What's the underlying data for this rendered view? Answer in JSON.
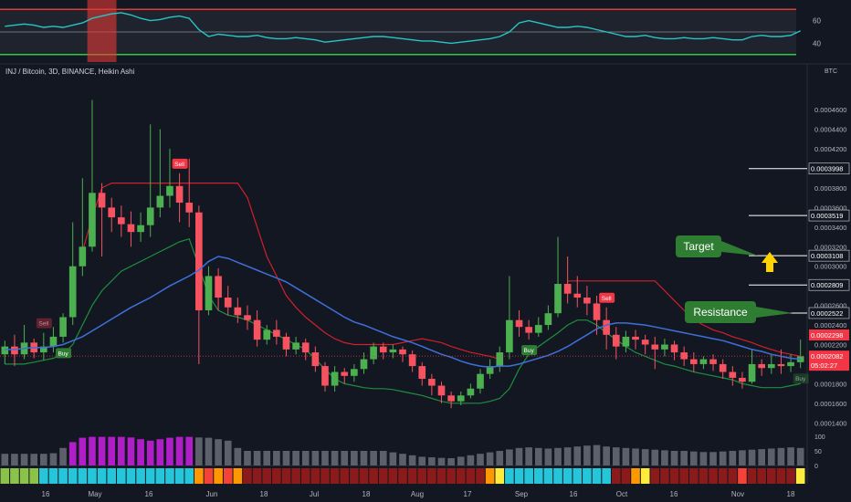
{
  "symbol": {
    "legend": "INJ / Bitcoin, 3D, BINANCE, Heikin Ashi"
  },
  "scale_unit": "BTC",
  "osc": {
    "ticks": [
      {
        "v": 60,
        "label": "60"
      },
      {
        "v": 40,
        "label": "40"
      }
    ],
    "ylim": [
      25,
      75
    ],
    "overbought": 70,
    "oversold": 30,
    "mid": 50
  },
  "volume": {
    "ticks": [
      {
        "v": 100,
        "label": "100"
      },
      {
        "v": 50,
        "label": "50"
      },
      {
        "v": 0,
        "label": "0"
      }
    ],
    "ylim": [
      0,
      100
    ]
  },
  "price_axis": {
    "ticks": [
      "0.0004600",
      "0.0004400",
      "0.0004200",
      "0.0004000",
      "0.0003800",
      "0.0003600",
      "0.0003400",
      "0.0003200",
      "0.0003000",
      "0.0002800",
      "0.0002600",
      "0.0002400",
      "0.0002200",
      "0.0002000",
      "0.0001800",
      "0.0001600",
      "0.0001400"
    ],
    "ylim": [
      0.00013,
      0.00049
    ]
  },
  "levels": [
    {
      "label": "0.0003998",
      "value": 0.0003998
    },
    {
      "label": "0.0003519",
      "value": 0.0003519
    },
    {
      "label": "0.0003108",
      "value": 0.0003108
    },
    {
      "label": "0.0002809",
      "value": 0.0002809
    },
    {
      "label": "0.0002522",
      "value": 0.0002522
    }
  ],
  "price_tags": [
    {
      "label": "0.0002298",
      "value": 0.0002298,
      "color": "#f23645"
    },
    {
      "label": "0.0002082",
      "value": 0.0002082,
      "color": "#f23645",
      "countdown": "05:02:27"
    }
  ],
  "annotations": [
    {
      "text": "Target",
      "anchor_value": 0.0003108
    },
    {
      "text": "Resistance",
      "anchor_value": 0.0002522
    }
  ],
  "x_ticks": [
    "16",
    "May",
    "16",
    "Jun",
    "18",
    "Jul",
    "18",
    "Aug",
    "17",
    "Sep",
    "16",
    "Oct",
    "16",
    "Nov",
    "18"
  ],
  "signals": [
    {
      "type": "Sell",
      "label": "Sell"
    },
    {
      "type": "Buy",
      "label": "Buy"
    },
    {
      "type": "Sell",
      "label": "Sell"
    },
    {
      "type": "Buy",
      "label": "Buy"
    },
    {
      "type": "Sell",
      "label": "Sell"
    },
    {
      "type": "Buy",
      "label": "Buy"
    }
  ],
  "colors": {
    "up": "#4caf50",
    "down": "#f7525f",
    "ma": "#3f6fd9",
    "trail_down": "#d0202a",
    "trail_up": "#1e8e3e",
    "osc": "#26c6c6",
    "bg": "#131722"
  },
  "chart_data": {
    "type": "candlestick",
    "title": "INJ / Bitcoin, 3D, BINANCE, Heikin Ashi",
    "y_unit": "BTC",
    "ylim": [
      0.00013,
      0.00049
    ],
    "candles": [
      [
        0.00021,
        0.000218,
        0.0002,
        0.000224
      ],
      [
        0.000218,
        0.00021,
        0.000198,
        0.00023
      ],
      [
        0.00021,
        0.000222,
        0.000205,
        0.00024
      ],
      [
        0.000222,
        0.000212,
        0.000206,
        0.000226
      ],
      [
        0.000212,
        0.000218,
        0.000204,
        0.000232
      ],
      [
        0.000218,
        0.000228,
        0.000212,
        0.000238
      ],
      [
        0.000228,
        0.000248,
        0.000222,
        0.000252
      ],
      [
        0.000248,
        0.0003,
        0.00024,
        0.000345
      ],
      [
        0.0003,
        0.00032,
        0.00029,
        0.00039
      ],
      [
        0.00032,
        0.000375,
        0.000315,
        0.00047
      ],
      [
        0.000375,
        0.00036,
        0.00031,
        0.000385
      ],
      [
        0.00036,
        0.00035,
        0.000335,
        0.00037
      ],
      [
        0.00035,
        0.000343,
        0.00033,
        0.000362
      ],
      [
        0.000343,
        0.000335,
        0.00032,
        0.000356
      ],
      [
        0.000335,
        0.000342,
        0.000325,
        0.000355
      ],
      [
        0.000342,
        0.00036,
        0.00033,
        0.000445
      ],
      [
        0.00036,
        0.000372,
        0.00035,
        0.00044
      ],
      [
        0.000372,
        0.000382,
        0.00036,
        0.00042
      ],
      [
        0.000382,
        0.000365,
        0.000345,
        0.000395
      ],
      [
        0.000365,
        0.000355,
        0.00034,
        0.00041
      ],
      [
        0.000355,
        0.000255,
        0.0002,
        0.000362
      ],
      [
        0.000255,
        0.00029,
        0.00025,
        0.0003
      ],
      [
        0.00029,
        0.000268,
        0.000255,
        0.000298
      ],
      [
        0.000268,
        0.000258,
        0.00025,
        0.00028
      ],
      [
        0.000258,
        0.00025,
        0.000242,
        0.000268
      ],
      [
        0.00025,
        0.000245,
        0.000235,
        0.00026
      ],
      [
        0.000245,
        0.000225,
        0.000218,
        0.000255
      ],
      [
        0.000225,
        0.000235,
        0.00022,
        0.00024
      ],
      [
        0.000235,
        0.000228,
        0.00022,
        0.000245
      ],
      [
        0.000228,
        0.000215,
        0.000208,
        0.000232
      ],
      [
        0.000215,
        0.000222,
        0.00021,
        0.000228
      ],
      [
        0.000222,
        0.000212,
        0.000204,
        0.000226
      ],
      [
        0.000212,
        0.000198,
        0.000192,
        0.000218
      ],
      [
        0.000198,
        0.000178,
        0.000172,
        0.000202
      ],
      [
        0.000178,
        0.000192,
        0.000172,
        0.000198
      ],
      [
        0.000192,
        0.000188,
        0.00018,
        0.000196
      ],
      [
        0.000188,
        0.000195,
        0.000182,
        0.0002
      ],
      [
        0.000195,
        0.000205,
        0.00019,
        0.000212
      ],
      [
        0.000205,
        0.000218,
        0.0002,
        0.000222
      ],
      [
        0.000218,
        0.000212,
        0.000205,
        0.000222
      ],
      [
        0.000212,
        0.000215,
        0.000206,
        0.00022
      ],
      [
        0.000215,
        0.00021,
        0.000202,
        0.000218
      ],
      [
        0.00021,
        0.000198,
        0.000192,
        0.000214
      ],
      [
        0.000198,
        0.000185,
        0.000178,
        0.000202
      ],
      [
        0.000185,
        0.000178,
        0.000168,
        0.00019
      ],
      [
        0.000178,
        0.000168,
        0.00016,
        0.000182
      ],
      [
        0.000168,
        0.000162,
        0.000155,
        0.000172
      ],
      [
        0.000162,
        0.000168,
        0.000158,
        0.000172
      ],
      [
        0.000168,
        0.000175,
        0.000165,
        0.00018
      ],
      [
        0.000175,
        0.00019,
        0.00017,
        0.000195
      ],
      [
        0.00019,
        0.000198,
        0.000185,
        0.000205
      ],
      [
        0.000198,
        0.000212,
        0.000192,
        0.000218
      ],
      [
        0.000212,
        0.000245,
        0.000205,
        0.00029
      ],
      [
        0.000245,
        0.000238,
        0.000228,
        0.000255
      ],
      [
        0.000238,
        0.000232,
        0.000225,
        0.000245
      ],
      [
        0.000232,
        0.00024,
        0.000228,
        0.000248
      ],
      [
        0.00024,
        0.000252,
        0.000235,
        0.00026
      ],
      [
        0.000252,
        0.000282,
        0.000248,
        0.00033
      ],
      [
        0.000282,
        0.000272,
        0.000262,
        0.00031
      ],
      [
        0.000272,
        0.000268,
        0.000258,
        0.00029
      ],
      [
        0.000268,
        0.000262,
        0.00025,
        0.00028
      ],
      [
        0.000262,
        0.000245,
        0.00023,
        0.00027
      ],
      [
        0.000245,
        0.00023,
        0.000215,
        0.000258
      ],
      [
        0.00023,
        0.000218,
        0.000205,
        0.000238
      ],
      [
        0.000218,
        0.000228,
        0.000212,
        0.000234
      ],
      [
        0.000228,
        0.000225,
        0.000215,
        0.000235
      ],
      [
        0.000225,
        0.00022,
        0.00021,
        0.00023
      ],
      [
        0.00022,
        0.000215,
        0.000195,
        0.000228
      ],
      [
        0.000215,
        0.00022,
        0.000208,
        0.000226
      ],
      [
        0.00022,
        0.000212,
        0.000204,
        0.000224
      ],
      [
        0.000212,
        0.000205,
        0.000198,
        0.000218
      ],
      [
        0.000205,
        0.0002,
        0.000192,
        0.000212
      ],
      [
        0.0002,
        0.000205,
        0.000195,
        0.000208
      ],
      [
        0.000205,
        0.0002,
        0.000193,
        0.00021
      ],
      [
        0.0002,
        0.000192,
        0.000185,
        0.000205
      ],
      [
        0.000192,
        0.000186,
        0.000178,
        0.000198
      ],
      [
        0.000186,
        0.000182,
        0.000175,
        0.000192
      ],
      [
        0.000182,
        0.0002,
        0.00018,
        0.000215
      ],
      [
        0.0002,
        0.000196,
        0.000188,
        0.000205
      ],
      [
        0.000196,
        0.0002,
        0.00019,
        0.00021
      ],
      [
        0.0002,
        0.000198,
        0.00019,
        0.000215
      ],
      [
        0.000198,
        0.000202,
        0.000192,
        0.00021
      ],
      [
        0.000202,
        0.000208,
        0.000196,
        0.000225
      ]
    ],
    "ma": [
      0.000215,
      0.000215,
      0.000216,
      0.000217,
      0.000217,
      0.000218,
      0.00022,
      0.000224,
      0.000228,
      0.000234,
      0.00024,
      0.000246,
      0.000252,
      0.000258,
      0.000263,
      0.000268,
      0.000274,
      0.00028,
      0.000285,
      0.00029,
      0.000296,
      0.000305,
      0.00031,
      0.000308,
      0.000304,
      0.0003,
      0.000296,
      0.000292,
      0.000288,
      0.000284,
      0.000278,
      0.000272,
      0.000266,
      0.00026,
      0.000254,
      0.000248,
      0.000243,
      0.00024,
      0.000236,
      0.000232,
      0.000228,
      0.000225,
      0.000222,
      0.000218,
      0.000214,
      0.00021,
      0.000207,
      0.000203,
      0.0002,
      0.000198,
      0.000197,
      0.000198,
      0.000198,
      0.0002,
      0.000203,
      0.000206,
      0.000209,
      0.000213,
      0.000218,
      0.000224,
      0.00023,
      0.000236,
      0.00024,
      0.000242,
      0.000242,
      0.000241,
      0.00024,
      0.000238,
      0.000236,
      0.000234,
      0.000232,
      0.00023,
      0.000228,
      0.000226,
      0.000224,
      0.000221,
      0.000218,
      0.000215,
      0.000213,
      0.00021,
      0.000208,
      0.000206,
      0.000205
    ],
    "trail_down": [
      null,
      null,
      null,
      null,
      null,
      null,
      null,
      null,
      0.000315,
      0.00035,
      0.00038,
      0.000385,
      0.000385,
      0.000385,
      0.000385,
      0.000385,
      0.000385,
      0.000385,
      0.000385,
      0.000385,
      0.000385,
      0.000385,
      0.000385,
      0.000385,
      0.000385,
      0.00037,
      0.00034,
      0.00031,
      0.00029,
      0.00027,
      0.000258,
      0.000248,
      0.00024,
      0.000232,
      0.000226,
      0.000222,
      0.00022,
      0.00022,
      0.00022,
      0.00022,
      0.00022,
      0.000222,
      0.000224,
      0.000226,
      0.000224,
      0.000222,
      0.000218,
      0.000215,
      0.000212,
      0.00021,
      0.000208,
      0.000205,
      null,
      null,
      null,
      null,
      null,
      null,
      0.000285,
      0.000285,
      0.000285,
      0.000285,
      0.000285,
      0.000285,
      0.000285,
      0.000285,
      0.000285,
      0.000285,
      0.000275,
      0.000265,
      0.000255,
      0.000245,
      0.00024,
      0.000235,
      0.000232,
      0.000228,
      0.000225,
      0.000222,
      0.000218,
      0.000215,
      0.000212,
      0.00021,
      0.000208
    ],
    "trail_up": [
      0.0002,
      0.0002,
      0.0002,
      0.000202,
      0.000204,
      0.000206,
      0.00021,
      0.00022,
      0.00024,
      0.00026,
      0.000275,
      0.000285,
      0.000295,
      0.0003,
      0.000305,
      0.00031,
      0.000315,
      0.00032,
      0.000325,
      0.000328,
      0.0003,
      0.00027,
      0.000255,
      0.00025,
      0.000248,
      0.000245,
      0.00024,
      0.000235,
      0.00023,
      0.000225,
      0.00022,
      0.000215,
      0.000205,
      0.000195,
      0.000185,
      0.00018,
      0.000178,
      0.000176,
      0.000175,
      0.000175,
      0.000174,
      0.000172,
      0.00017,
      0.000168,
      0.000165,
      0.000162,
      0.00016,
      0.00016,
      0.00016,
      0.00016,
      0.000162,
      0.000165,
      0.000175,
      0.000195,
      0.00021,
      0.000218,
      0.000225,
      0.000232,
      0.00024,
      0.000245,
      0.000245,
      0.00024,
      0.000232,
      0.000225,
      0.000218,
      0.000212,
      0.000208,
      0.000204,
      0.0002,
      0.000198,
      0.000195,
      0.000192,
      0.00019,
      0.000188,
      0.000186,
      0.000184,
      0.00018,
      0.000178,
      0.000176,
      0.000176,
      0.000176,
      0.000178,
      0.00018
    ],
    "osc_values": [
      55,
      56,
      57,
      56,
      54,
      55,
      54,
      56,
      58,
      62,
      64,
      66,
      67,
      65,
      62,
      60,
      61,
      63,
      64,
      62,
      52,
      46,
      48,
      47,
      46,
      46,
      47,
      45,
      44,
      44,
      45,
      44,
      43,
      41,
      42,
      43,
      44,
      45,
      46,
      46,
      45,
      44,
      43,
      42,
      42,
      41,
      40,
      41,
      42,
      43,
      44,
      46,
      50,
      58,
      60,
      58,
      56,
      54,
      54,
      55,
      54,
      52,
      50,
      48,
      46,
      46,
      47,
      45,
      44,
      44,
      45,
      44,
      44,
      45,
      44,
      43,
      43,
      46,
      47,
      46,
      46,
      47,
      51
    ],
    "volume_values": [
      40,
      40,
      40,
      40,
      40,
      42,
      60,
      80,
      95,
      98,
      98,
      98,
      98,
      96,
      90,
      85,
      90,
      95,
      98,
      98,
      96,
      95,
      90,
      85,
      60,
      50,
      50,
      50,
      50,
      50,
      50,
      50,
      50,
      50,
      50,
      50,
      50,
      50,
      50,
      50,
      45,
      40,
      35,
      30,
      28,
      26,
      25,
      30,
      35,
      40,
      45,
      50,
      55,
      60,
      62,
      60,
      58,
      60,
      62,
      65,
      68,
      70,
      65,
      62,
      60,
      58,
      56,
      54,
      52,
      50,
      50,
      48,
      46,
      46,
      48,
      50,
      52,
      54,
      56,
      58,
      60,
      62,
      60
    ],
    "histogram_states": [
      "G",
      "G",
      "G",
      "G",
      "C",
      "C",
      "C",
      "C",
      "C",
      "C",
      "C",
      "C",
      "C",
      "C",
      "C",
      "C",
      "C",
      "C",
      "C",
      "C",
      "O",
      "R",
      "O",
      "R",
      "O",
      "D",
      "D",
      "D",
      "D",
      "D",
      "D",
      "D",
      "D",
      "D",
      "D",
      "D",
      "D",
      "D",
      "D",
      "D",
      "D",
      "D",
      "D",
      "D",
      "D",
      "D",
      "D",
      "D",
      "D",
      "D",
      "O",
      "Y",
      "C",
      "C",
      "C",
      "C",
      "C",
      "C",
      "C",
      "C",
      "C",
      "C",
      "C",
      "D",
      "D",
      "O",
      "Y",
      "D",
      "D",
      "D",
      "D",
      "D",
      "D",
      "D",
      "D",
      "D",
      "R",
      "D",
      "D",
      "D",
      "D",
      "D",
      "Y"
    ]
  }
}
